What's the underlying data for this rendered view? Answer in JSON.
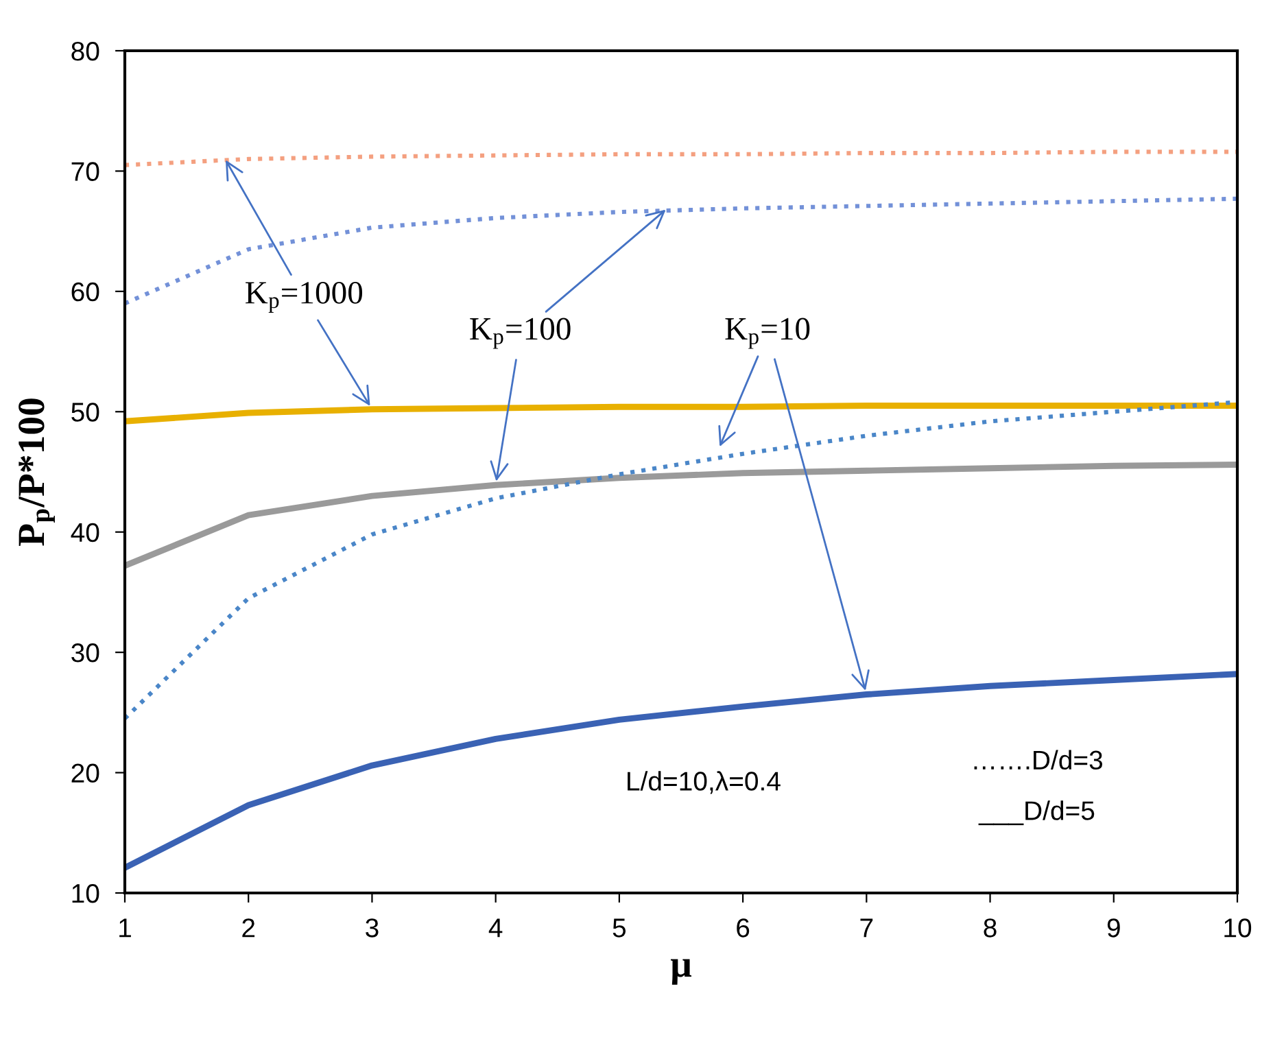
{
  "chart_data": {
    "type": "line",
    "xlabel": "μ",
    "ylabel": "P$_{p}$/P*100",
    "x": [
      1,
      2,
      3,
      4,
      5,
      6,
      7,
      8,
      9,
      10
    ],
    "xlim": [
      1,
      10
    ],
    "xticks": [
      1,
      2,
      3,
      4,
      5,
      6,
      7,
      8,
      9,
      10
    ],
    "ylim": [
      10,
      80
    ],
    "yticks": [
      10,
      20,
      30,
      40,
      50,
      60,
      70,
      80
    ],
    "grid": false,
    "marker": "none",
    "series": [
      {
        "color": "#f4a080",
        "line_style": "dotted",
        "values": [
          70.5,
          71.0,
          71.2,
          71.3,
          71.4,
          71.4,
          71.5,
          71.5,
          71.6,
          71.6
        ]
      },
      {
        "color": "#7391d8",
        "line_style": "dotted",
        "values": [
          59.0,
          63.5,
          65.3,
          66.1,
          66.6,
          66.9,
          67.1,
          67.3,
          67.5,
          67.7
        ]
      },
      {
        "color": "#e8b000",
        "line_style": "solid",
        "values": [
          49.2,
          49.9,
          50.2,
          50.3,
          50.4,
          50.4,
          50.5,
          50.5,
          50.5,
          50.5
        ]
      },
      {
        "color": "#9a9a9a",
        "line_style": "solid",
        "values": [
          37.2,
          41.4,
          43.0,
          43.9,
          44.5,
          44.9,
          45.1,
          45.3,
          45.5,
          45.6
        ]
      },
      {
        "color": "#4a86c8",
        "line_style": "dotted",
        "values": [
          24.5,
          34.5,
          39.8,
          42.8,
          44.8,
          46.5,
          48.0,
          49.2,
          50.0,
          50.8
        ]
      },
      {
        "color": "#3a62b4",
        "line_style": "solid",
        "values": [
          12.1,
          17.3,
          20.6,
          22.8,
          24.4,
          25.5,
          26.5,
          27.2,
          27.7,
          28.2
        ]
      }
    ],
    "annotations": [
      {
        "text": "K$_{p}$=1000",
        "x": 1.8,
        "y": 71.2
      },
      {
        "text": "K$_{p}$=100",
        "x": 5.4,
        "y": 67.0
      },
      {
        "text": "K$_{p}$=10",
        "x": 5.8,
        "y": 46.8
      },
      "L/d=10,λ=0.4",
      "…….D/d=3",
      "___D/d=5"
    ]
  }
}
